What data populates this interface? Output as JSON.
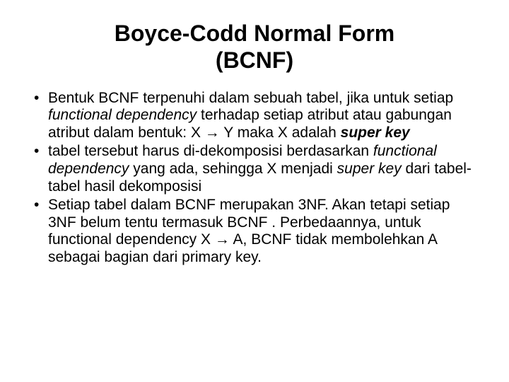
{
  "title_line1": "Boyce-Codd Normal Form",
  "title_line2": "(BCNF)",
  "bullets": [
    {
      "parts": [
        {
          "t": "Bentuk BCNF terpenuhi dalam sebuah tabel, jika untuk setiap "
        },
        {
          "t": "functional dependency",
          "style": "italic"
        },
        {
          "t": " terhadap setiap atribut atau gabungan atribut dalam bentuk:  X → Y maka X adalah "
        },
        {
          "t": "super key",
          "style": "bolditalic"
        }
      ]
    },
    {
      "parts": [
        {
          "t": "tabel tersebut harus di-dekomposisi berdasarkan "
        },
        {
          "t": "functional dependency",
          "style": "italic"
        },
        {
          "t": " yang ada, sehingga X menjadi "
        },
        {
          "t": "super key",
          "style": "italic"
        },
        {
          "t": " dari tabel-tabel hasil dekomposisi"
        }
      ]
    },
    {
      "parts": [
        {
          "t": "Setiap tabel dalam BCNF merupakan 3NF. Akan tetapi setiap 3NF belum tentu termasuk BCNF . Perbedaannya, untuk functional dependency X → A, BCNF tidak membolehkan A sebagai bagian dari primary key."
        }
      ]
    }
  ],
  "colors": {
    "background": "#ffffff",
    "text": "#000000"
  },
  "typography": {
    "title_fontsize": 32,
    "title_weight": "bold",
    "body_fontsize": 21,
    "font_family": "Arial"
  }
}
